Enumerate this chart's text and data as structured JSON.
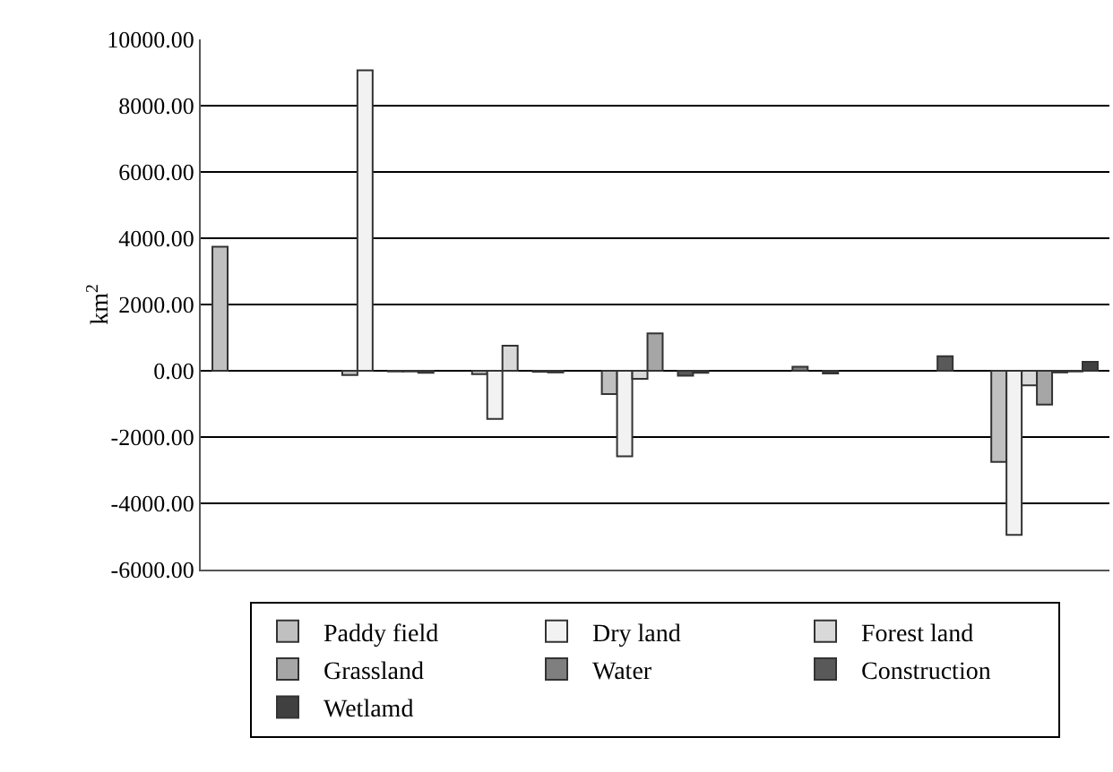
{
  "chart_data": {
    "type": "bar",
    "ylabel": "km$^{2}$",
    "categories": [
      null,
      null,
      null,
      null,
      null,
      null,
      null
    ],
    "series": [
      {
        "name": "Paddy field",
        "color": "#c0c0c0",
        "values": [
          3740,
          -130,
          -100,
          -700,
          null,
          null,
          -2750
        ]
      },
      {
        "name": "Dry land",
        "color": "#f2f2f2",
        "values": [
          null,
          9070,
          -1450,
          -2580,
          null,
          null,
          -4950
        ]
      },
      {
        "name": "Forest land",
        "color": "#d9d9d9",
        "values": [
          null,
          null,
          760,
          -240,
          null,
          null,
          -440
        ]
      },
      {
        "name": "Grassland",
        "color": "#a6a6a6",
        "values": [
          null,
          -20,
          null,
          1130,
          null,
          null,
          -1020
        ]
      },
      {
        "name": "Water",
        "color": "#7f7f7f",
        "values": [
          null,
          -20,
          -30,
          null,
          120,
          null,
          -50
        ]
      },
      {
        "name": "Construction",
        "color": "#595959",
        "values": [
          null,
          -60,
          -50,
          -150,
          null,
          440,
          -20
        ]
      },
      {
        "name": "Wetlamd",
        "color": "#404040",
        "values": [
          null,
          null,
          null,
          -60,
          -80,
          null,
          270
        ]
      }
    ],
    "ylim": [
      -6000,
      10000
    ],
    "yticks": [
      {
        "value": -6000,
        "label": "-6000.00"
      },
      {
        "value": -4000,
        "label": "-4000.00"
      },
      {
        "value": -2000,
        "label": "-2000.00"
      },
      {
        "value": 0,
        "label": "0.00"
      },
      {
        "value": 2000,
        "label": "2000.00"
      },
      {
        "value": 4000,
        "label": "4000.00"
      },
      {
        "value": 6000,
        "label": "6000.00"
      },
      {
        "value": 8000,
        "label": "8000.00"
      },
      {
        "value": 10000,
        "label": "10000.00"
      }
    ],
    "grid": "y",
    "legend": "bottom"
  }
}
